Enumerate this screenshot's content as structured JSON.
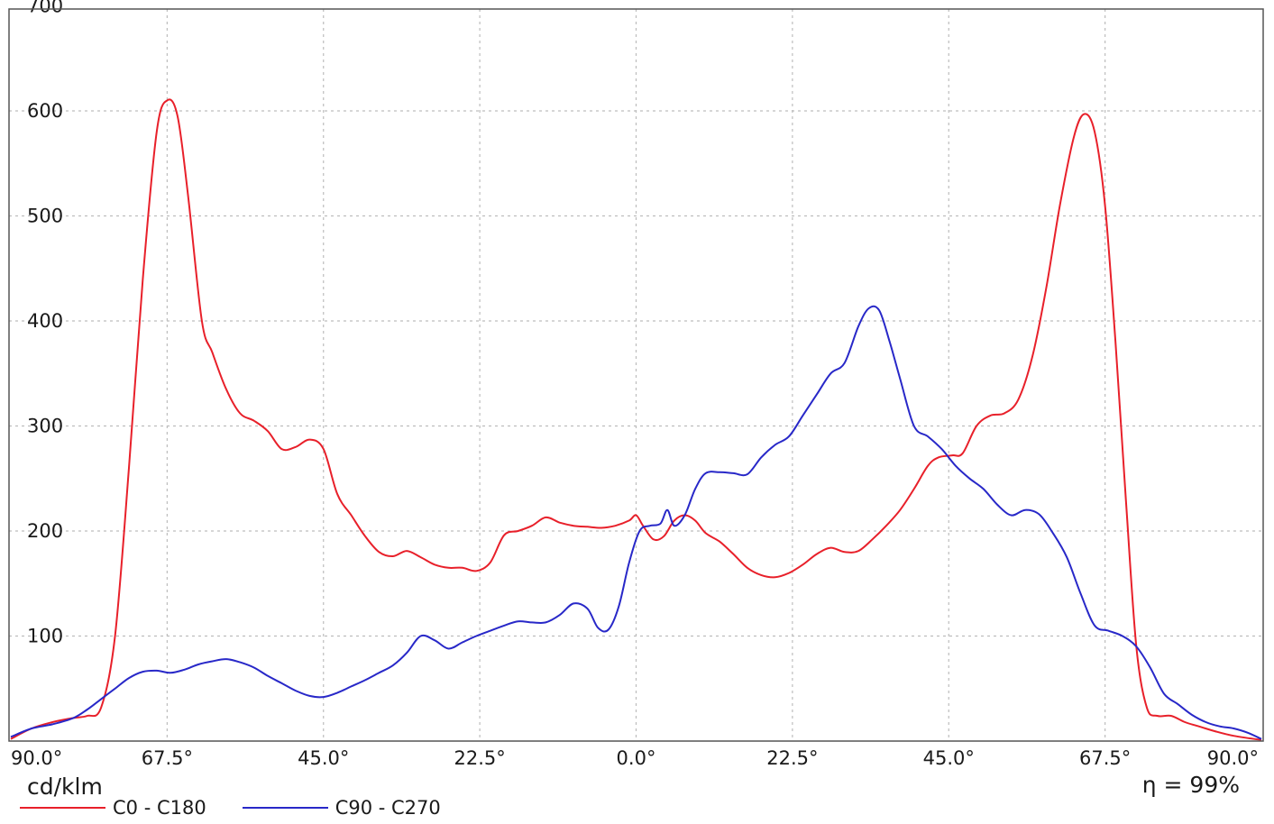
{
  "chart_data": {
    "type": "line",
    "x_tick_labels": [
      "90.0°",
      "67.5°",
      "45.0°",
      "22.5°",
      "0.0°",
      "22.5°",
      "45.0°",
      "67.5°",
      "90.0°"
    ],
    "x_tick_values": [
      -90,
      -67.5,
      -45,
      -22.5,
      0,
      22.5,
      45,
      67.5,
      90
    ],
    "xlim": [
      -90,
      90
    ],
    "ylim": [
      0,
      700
    ],
    "y_ticks": [
      100,
      200,
      300,
      400,
      500,
      600,
      700
    ],
    "ylabel": "cd/klm",
    "annotation": "η = 99%",
    "grid": true,
    "legend_position": "bottom-left",
    "series": [
      {
        "name": "C0 - C180",
        "color": "#e8202a",
        "points": [
          [
            -90,
            2
          ],
          [
            -87,
            12
          ],
          [
            -84,
            18
          ],
          [
            -81,
            22
          ],
          [
            -79,
            24
          ],
          [
            -77,
            32
          ],
          [
            -75,
            100
          ],
          [
            -73,
            260
          ],
          [
            -71,
            440
          ],
          [
            -69,
            580
          ],
          [
            -67.5,
            610
          ],
          [
            -66,
            595
          ],
          [
            -64.5,
            520
          ],
          [
            -62.5,
            400
          ],
          [
            -61,
            370
          ],
          [
            -59,
            335
          ],
          [
            -57,
            312
          ],
          [
            -55,
            305
          ],
          [
            -53,
            295
          ],
          [
            -51,
            278
          ],
          [
            -49,
            280
          ],
          [
            -47,
            287
          ],
          [
            -45,
            278
          ],
          [
            -43,
            235
          ],
          [
            -41,
            215
          ],
          [
            -39,
            195
          ],
          [
            -37,
            180
          ],
          [
            -35,
            176
          ],
          [
            -33,
            181
          ],
          [
            -31,
            175
          ],
          [
            -29,
            168
          ],
          [
            -27,
            165
          ],
          [
            -25,
            165
          ],
          [
            -23,
            162
          ],
          [
            -21,
            170
          ],
          [
            -19,
            196
          ],
          [
            -17,
            200
          ],
          [
            -15,
            205
          ],
          [
            -13,
            213
          ],
          [
            -11,
            208
          ],
          [
            -9,
            205
          ],
          [
            -7,
            204
          ],
          [
            -5,
            203
          ],
          [
            -3,
            205
          ],
          [
            -1,
            210
          ],
          [
            0,
            215
          ],
          [
            1,
            205
          ],
          [
            2.5,
            192
          ],
          [
            4,
            195
          ],
          [
            5.5,
            210
          ],
          [
            7,
            215
          ],
          [
            8.5,
            210
          ],
          [
            10,
            198
          ],
          [
            12,
            190
          ],
          [
            14,
            178
          ],
          [
            16,
            165
          ],
          [
            18,
            158
          ],
          [
            20,
            156
          ],
          [
            22,
            160
          ],
          [
            24,
            168
          ],
          [
            26,
            178
          ],
          [
            28,
            184
          ],
          [
            30,
            180
          ],
          [
            32,
            181
          ],
          [
            34,
            192
          ],
          [
            36,
            205
          ],
          [
            38,
            220
          ],
          [
            40,
            240
          ],
          [
            42,
            262
          ],
          [
            43.5,
            270
          ],
          [
            45.5,
            272
          ],
          [
            47,
            274
          ],
          [
            49,
            300
          ],
          [
            51,
            310
          ],
          [
            53,
            312
          ],
          [
            55,
            325
          ],
          [
            57,
            365
          ],
          [
            59,
            430
          ],
          [
            61,
            510
          ],
          [
            63,
            575
          ],
          [
            64.5,
            597
          ],
          [
            66,
            580
          ],
          [
            67.5,
            510
          ],
          [
            69,
            380
          ],
          [
            70.5,
            230
          ],
          [
            72,
            90
          ],
          [
            73.5,
            32
          ],
          [
            75,
            24
          ],
          [
            77,
            24
          ],
          [
            79,
            18
          ],
          [
            81,
            14
          ],
          [
            83.5,
            9
          ],
          [
            86,
            5
          ],
          [
            90,
            1
          ]
        ]
      },
      {
        "name": "C90 - C270",
        "color": "#2828c8",
        "points": [
          [
            -90,
            4
          ],
          [
            -87,
            12
          ],
          [
            -84,
            16
          ],
          [
            -81,
            22
          ],
          [
            -79,
            30
          ],
          [
            -77,
            40
          ],
          [
            -75,
            50
          ],
          [
            -73,
            60
          ],
          [
            -71,
            66
          ],
          [
            -69,
            67
          ],
          [
            -67,
            65
          ],
          [
            -65,
            68
          ],
          [
            -63,
            73
          ],
          [
            -61,
            76
          ],
          [
            -59,
            78
          ],
          [
            -57,
            75
          ],
          [
            -55,
            70
          ],
          [
            -53,
            62
          ],
          [
            -51,
            55
          ],
          [
            -49,
            48
          ],
          [
            -47,
            43
          ],
          [
            -45,
            42
          ],
          [
            -43,
            46
          ],
          [
            -41,
            52
          ],
          [
            -39,
            58
          ],
          [
            -37,
            65
          ],
          [
            -35,
            72
          ],
          [
            -33,
            84
          ],
          [
            -31,
            100
          ],
          [
            -29,
            96
          ],
          [
            -27,
            88
          ],
          [
            -25,
            94
          ],
          [
            -23,
            100
          ],
          [
            -21,
            105
          ],
          [
            -19,
            110
          ],
          [
            -17,
            114
          ],
          [
            -15,
            113
          ],
          [
            -13,
            113
          ],
          [
            -11,
            120
          ],
          [
            -9,
            131
          ],
          [
            -7,
            126
          ],
          [
            -5.5,
            108
          ],
          [
            -4,
            106
          ],
          [
            -2.5,
            128
          ],
          [
            -1,
            170
          ],
          [
            0.5,
            200
          ],
          [
            2,
            205
          ],
          [
            3.5,
            207
          ],
          [
            4.5,
            220
          ],
          [
            5.5,
            205
          ],
          [
            7,
            215
          ],
          [
            8.5,
            240
          ],
          [
            10,
            255
          ],
          [
            12,
            256
          ],
          [
            14,
            255
          ],
          [
            16,
            254
          ],
          [
            18,
            270
          ],
          [
            20,
            282
          ],
          [
            22,
            290
          ],
          [
            24,
            310
          ],
          [
            26,
            330
          ],
          [
            28,
            350
          ],
          [
            30,
            360
          ],
          [
            32,
            395
          ],
          [
            33.5,
            412
          ],
          [
            35,
            410
          ],
          [
            36.5,
            380
          ],
          [
            38,
            345
          ],
          [
            40,
            300
          ],
          [
            42,
            290
          ],
          [
            44,
            278
          ],
          [
            46,
            262
          ],
          [
            48,
            250
          ],
          [
            50,
            240
          ],
          [
            52,
            225
          ],
          [
            54,
            215
          ],
          [
            56,
            220
          ],
          [
            58,
            216
          ],
          [
            60,
            198
          ],
          [
            62,
            175
          ],
          [
            64,
            140
          ],
          [
            66,
            110
          ],
          [
            68,
            105
          ],
          [
            70,
            100
          ],
          [
            72,
            90
          ],
          [
            74,
            70
          ],
          [
            76,
            45
          ],
          [
            78,
            35
          ],
          [
            80,
            25
          ],
          [
            82,
            18
          ],
          [
            84,
            14
          ],
          [
            86,
            12
          ],
          [
            88,
            8
          ],
          [
            90,
            2
          ]
        ]
      }
    ]
  }
}
